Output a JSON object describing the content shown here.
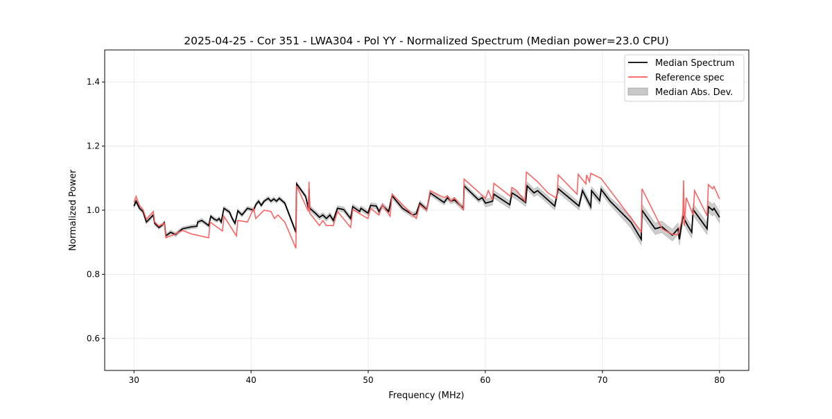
{
  "chart_data": {
    "type": "line",
    "title": "2025-04-25 - Cor 351 - LWA304 - Pol YY - Normalized Spectrum (Median power=23.0 CPU)",
    "xlabel": "Frequency (MHz)",
    "ylabel": "Normalized Power",
    "xlim": [
      27.5,
      82.5
    ],
    "ylim": [
      0.5,
      1.5
    ],
    "xticks": [
      30,
      40,
      50,
      60,
      70,
      80
    ],
    "yticks": [
      0.6,
      0.8,
      1.0,
      1.2,
      1.4
    ],
    "ytick_labels": [
      "0.6",
      "0.8",
      "1.0",
      "1.2",
      "1.4"
    ],
    "grid": true,
    "legend_position": "top-right",
    "colors": {
      "median": "#000000",
      "reference": "#ff5a5a",
      "mad": "#c8c8c8"
    },
    "series": [
      {
        "name": "Median Spectrum",
        "points": [
          [
            30.0,
            1.013
          ],
          [
            30.18,
            1.028
          ],
          [
            30.47,
            1.006
          ],
          [
            30.77,
            0.996
          ],
          [
            31.06,
            0.963
          ],
          [
            31.36,
            0.974
          ],
          [
            31.65,
            0.985
          ],
          [
            31.77,
            0.959
          ],
          [
            32.13,
            0.946
          ],
          [
            32.36,
            0.952
          ],
          [
            32.6,
            0.961
          ],
          [
            32.72,
            0.92
          ],
          [
            33.13,
            0.931
          ],
          [
            33.55,
            0.924
          ],
          [
            34.14,
            0.942
          ],
          [
            34.91,
            0.948
          ],
          [
            35.38,
            0.95
          ],
          [
            35.44,
            0.963
          ],
          [
            35.79,
            0.968
          ],
          [
            36.38,
            0.952
          ],
          [
            36.56,
            0.981
          ],
          [
            36.86,
            0.972
          ],
          [
            37.09,
            0.968
          ],
          [
            37.27,
            0.974
          ],
          [
            37.45,
            0.963
          ],
          [
            37.68,
            1.006
          ],
          [
            38.16,
            0.994
          ],
          [
            38.39,
            0.974
          ],
          [
            38.63,
            0.959
          ],
          [
            38.87,
            0.998
          ],
          [
            39.22,
            0.985
          ],
          [
            39.69,
            1.006
          ],
          [
            40.22,
            1.0
          ],
          [
            40.4,
            1.017
          ],
          [
            40.64,
            1.028
          ],
          [
            40.87,
            1.015
          ],
          [
            41.11,
            1.028
          ],
          [
            41.47,
            1.037
          ],
          [
            41.7,
            1.028
          ],
          [
            41.94,
            1.035
          ],
          [
            42.17,
            1.028
          ],
          [
            42.41,
            1.037
          ],
          [
            42.88,
            1.022
          ],
          [
            43.83,
            0.931
          ],
          [
            43.89,
            1.082
          ],
          [
            44.66,
            1.043
          ],
          [
            44.89,
            1.006
          ],
          [
            44.95,
            1.067
          ],
          [
            45.01,
            1.006
          ],
          [
            45.54,
            0.989
          ],
          [
            45.84,
            0.978
          ],
          [
            46.13,
            0.985
          ],
          [
            46.43,
            0.974
          ],
          [
            46.73,
            0.985
          ],
          [
            47.02,
            0.968
          ],
          [
            47.38,
            1.006
          ],
          [
            47.91,
            1.002
          ],
          [
            48.5,
            0.974
          ],
          [
            48.68,
            1.011
          ],
          [
            49.27,
            0.996
          ],
          [
            49.38,
            1.006
          ],
          [
            49.98,
            0.991
          ],
          [
            50.21,
            1.015
          ],
          [
            50.69,
            1.013
          ],
          [
            50.92,
            0.996
          ],
          [
            51.22,
            1.015
          ],
          [
            51.75,
            0.996
          ],
          [
            52.04,
            1.045
          ],
          [
            52.93,
            1.006
          ],
          [
            53.82,
            0.985
          ],
          [
            54.11,
            0.989
          ],
          [
            54.41,
            1.022
          ],
          [
            55.0,
            1.002
          ],
          [
            55.29,
            1.054
          ],
          [
            56.48,
            1.024
          ],
          [
            56.77,
            1.039
          ],
          [
            57.07,
            1.028
          ],
          [
            57.36,
            1.032
          ],
          [
            58.13,
            1.006
          ],
          [
            58.19,
            1.076
          ],
          [
            59.43,
            1.032
          ],
          [
            59.73,
            1.039
          ],
          [
            60.02,
            1.022
          ],
          [
            60.61,
            1.028
          ],
          [
            60.73,
            1.05
          ],
          [
            62.09,
            1.017
          ],
          [
            62.27,
            1.054
          ],
          [
            62.68,
            1.045
          ],
          [
            63.45,
            1.024
          ],
          [
            63.57,
            1.076
          ],
          [
            64.16,
            1.054
          ],
          [
            64.46,
            1.061
          ],
          [
            65.93,
            1.013
          ],
          [
            66.23,
            1.067
          ],
          [
            68.0,
            1.013
          ],
          [
            68.3,
            1.061
          ],
          [
            69.01,
            1.011
          ],
          [
            69.07,
            1.061
          ],
          [
            69.77,
            1.03
          ],
          [
            69.89,
            1.065
          ],
          [
            70.66,
            1.028
          ],
          [
            72.43,
            0.963
          ],
          [
            73.32,
            0.909
          ],
          [
            73.38,
            1.0
          ],
          [
            74.5,
            0.942
          ],
          [
            75.09,
            0.948
          ],
          [
            75.51,
            0.935
          ],
          [
            75.98,
            0.922
          ],
          [
            76.45,
            0.942
          ],
          [
            76.57,
            0.909
          ],
          [
            76.87,
            0.981
          ],
          [
            77.28,
            0.952
          ],
          [
            77.63,
            0.931
          ],
          [
            77.75,
            1.002
          ],
          [
            78.94,
            0.942
          ],
          [
            79.05,
            1.011
          ],
          [
            79.41,
            1.0
          ],
          [
            79.53,
            1.006
          ],
          [
            80.0,
            0.978
          ]
        ]
      },
      {
        "name": "Reference spec",
        "points": [
          [
            30.0,
            1.024
          ],
          [
            30.18,
            1.043
          ],
          [
            30.47,
            1.015
          ],
          [
            30.77,
            1.002
          ],
          [
            31.06,
            0.972
          ],
          [
            31.65,
            0.996
          ],
          [
            31.77,
            0.963
          ],
          [
            32.13,
            0.95
          ],
          [
            32.6,
            0.959
          ],
          [
            32.72,
            0.914
          ],
          [
            33.43,
            0.924
          ],
          [
            34.14,
            0.937
          ],
          [
            34.91,
            0.926
          ],
          [
            36.38,
            0.914
          ],
          [
            36.5,
            0.963
          ],
          [
            37.56,
            0.935
          ],
          [
            37.68,
            0.981
          ],
          [
            38.75,
            0.92
          ],
          [
            38.87,
            0.968
          ],
          [
            39.69,
            0.963
          ],
          [
            40.22,
            1.006
          ],
          [
            40.4,
            0.974
          ],
          [
            41.11,
            1.0
          ],
          [
            41.7,
            0.996
          ],
          [
            42.0,
            0.974
          ],
          [
            42.29,
            0.985
          ],
          [
            42.88,
            0.963
          ],
          [
            43.83,
            0.881
          ],
          [
            43.89,
            1.076
          ],
          [
            44.89,
            0.996
          ],
          [
            44.95,
            1.089
          ],
          [
            45.01,
            0.991
          ],
          [
            45.84,
            0.952
          ],
          [
            46.13,
            0.968
          ],
          [
            46.43,
            0.952
          ],
          [
            47.02,
            0.952
          ],
          [
            47.38,
            0.996
          ],
          [
            48.5,
            0.946
          ],
          [
            48.68,
            1.002
          ],
          [
            49.98,
            0.974
          ],
          [
            50.21,
            1.006
          ],
          [
            50.92,
            0.985
          ],
          [
            51.22,
            1.017
          ],
          [
            51.87,
            0.981
          ],
          [
            52.04,
            1.05
          ],
          [
            54.11,
            0.974
          ],
          [
            54.41,
            1.017
          ],
          [
            55.0,
            1.0
          ],
          [
            55.29,
            1.061
          ],
          [
            56.48,
            1.039
          ],
          [
            56.77,
            1.045
          ],
          [
            57.07,
            1.028
          ],
          [
            57.36,
            1.039
          ],
          [
            58.13,
            1.002
          ],
          [
            58.19,
            1.097
          ],
          [
            60.02,
            1.037
          ],
          [
            60.26,
            1.061
          ],
          [
            60.61,
            1.032
          ],
          [
            60.73,
            1.084
          ],
          [
            62.15,
            1.043
          ],
          [
            62.27,
            1.071
          ],
          [
            62.68,
            1.061
          ],
          [
            63.39,
            1.028
          ],
          [
            63.51,
            1.119
          ],
          [
            64.46,
            1.089
          ],
          [
            65.34,
            1.054
          ],
          [
            66.11,
            1.037
          ],
          [
            66.23,
            1.11
          ],
          [
            67.83,
            1.05
          ],
          [
            67.94,
            1.112
          ],
          [
            68.59,
            1.082
          ],
          [
            68.65,
            1.11
          ],
          [
            68.89,
            1.089
          ],
          [
            69.01,
            1.115
          ],
          [
            69.89,
            1.099
          ],
          [
            73.32,
            0.933
          ],
          [
            73.38,
            1.067
          ],
          [
            75.09,
            0.942
          ],
          [
            75.98,
            0.924
          ],
          [
            76.45,
            0.924
          ],
          [
            76.75,
            0.963
          ],
          [
            76.87,
            0.989
          ],
          [
            76.93,
            1.093
          ],
          [
            76.99,
            0.952
          ],
          [
            77.16,
            1.039
          ],
          [
            77.75,
            0.985
          ],
          [
            77.87,
            1.061
          ],
          [
            78.94,
            0.983
          ],
          [
            79.05,
            1.08
          ],
          [
            79.41,
            1.067
          ],
          [
            79.53,
            1.074
          ],
          [
            80.0,
            1.035
          ]
        ]
      },
      {
        "name": "Median Abs. Dev.",
        "type": "band",
        "around": "Median Spectrum",
        "mad_by_range": [
          [
            30,
            45,
            0.006
          ],
          [
            45,
            60,
            0.008
          ],
          [
            60,
            72,
            0.012
          ],
          [
            72,
            80.01,
            0.018
          ]
        ]
      }
    ]
  }
}
